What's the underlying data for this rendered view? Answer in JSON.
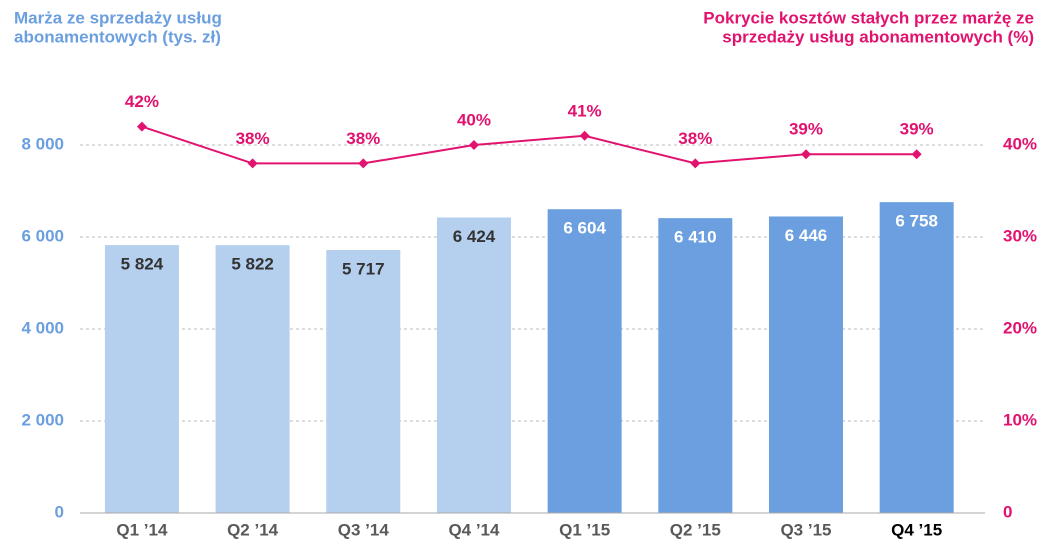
{
  "chart_data": {
    "type": "bar_line",
    "y_label": [
      "Marża ze sprzedaży usług",
      "abonamentowych  (tys. zł)"
    ],
    "y2_label": [
      "Pokrycie kosztów stałych przez marżę ze",
      "sprzedaży usług abonamentowych  (%)"
    ],
    "categories": [
      "Q1 ’14",
      "Q2 ’14",
      "Q3 ’14",
      "Q4 ’14",
      "Q1 ’15",
      "Q2 ’15",
      "Q3 ’15",
      "Q4 ’15"
    ],
    "highlight_index": 7,
    "series": [
      {
        "type": "bar",
        "colors": [
          "#b5cfee",
          "#b5cfee",
          "#b5cfee",
          "#b5cfee",
          "#6b9fdf",
          "#6b9fdf",
          "#6b9fdf",
          "#6b9fdf"
        ],
        "label_colors": [
          "#333333",
          "#333333",
          "#333333",
          "#333333",
          "#ffffff",
          "#ffffff",
          "#ffffff",
          "#ffffff"
        ],
        "values": [
          5824,
          5822,
          5717,
          6424,
          6604,
          6410,
          6446,
          6758
        ],
        "value_labels": [
          "5 824",
          "5 822",
          "5 717",
          "6 424",
          "6 604",
          "6 410",
          "6 446",
          "6 758"
        ]
      },
      {
        "type": "line",
        "axis": "y2",
        "color": "#e2126f",
        "values": [
          42,
          38,
          38,
          40,
          41,
          38,
          39,
          39
        ],
        "value_labels": [
          "42%",
          "38%",
          "38%",
          "40%",
          "41%",
          "38%",
          "39%",
          "39%"
        ]
      }
    ],
    "ylim": [
      0,
      8000
    ],
    "yticks": [
      0,
      {
        "value": 2000,
        "label": "2 000"
      },
      {
        "value": 4000,
        "label": "4 000"
      },
      {
        "value": 6000,
        "label": "6 000"
      },
      {
        "value": 8000,
        "label": "8 000"
      }
    ],
    "y2lim": [
      0,
      40
    ],
    "y2ticks": [
      0,
      {
        "value": 10,
        "label": "10%"
      },
      {
        "value": 20,
        "label": "20%"
      },
      {
        "value": 30,
        "label": "30%"
      },
      {
        "value": 40,
        "label": "40%"
      }
    ],
    "y_color": "#6b9fdf",
    "y2_color": "#e2126f",
    "grid": true
  }
}
